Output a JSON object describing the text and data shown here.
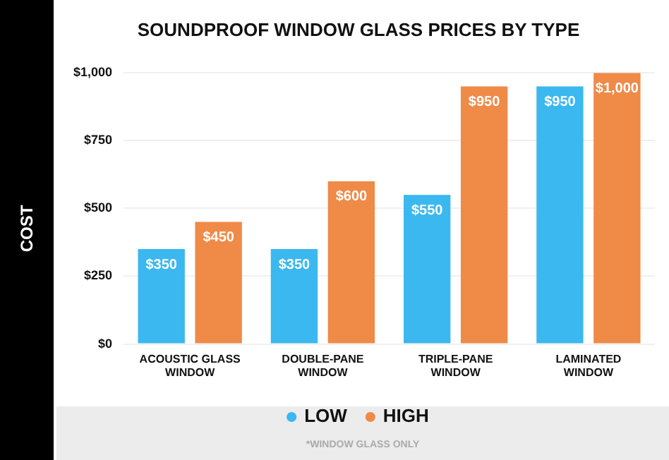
{
  "chart_data": {
    "type": "bar",
    "title": "SOUNDPROOF WINDOW GLASS PRICES BY TYPE",
    "ylabel": "COST",
    "categories": [
      "ACOUSTIC GLASS WINDOW",
      "DOUBLE-PANE WINDOW",
      "TRIPLE-PANE WINDOW",
      "LAMINATED WINDOW"
    ],
    "series": [
      {
        "name": "LOW",
        "color": "#3ab8ef",
        "values": [
          350,
          350,
          550,
          950
        ],
        "value_labels": [
          "$350",
          "$350",
          "$550",
          "$950"
        ]
      },
      {
        "name": "HIGH",
        "color": "#ef8a47",
        "values": [
          450,
          600,
          950,
          1000
        ],
        "value_labels": [
          "$450",
          "$600",
          "$950",
          "$1,000"
        ]
      }
    ],
    "ylim": [
      0,
      1000
    ],
    "yticks": [
      {
        "value": 0,
        "label": "$0"
      },
      {
        "value": 250,
        "label": "$250"
      },
      {
        "value": 500,
        "label": "$500"
      },
      {
        "value": 750,
        "label": "$750"
      },
      {
        "value": 1000,
        "label": "$1,000"
      }
    ],
    "grid": "y",
    "legend": "bottom",
    "annotations": [
      "*WINDOW GLASS ONLY"
    ]
  }
}
